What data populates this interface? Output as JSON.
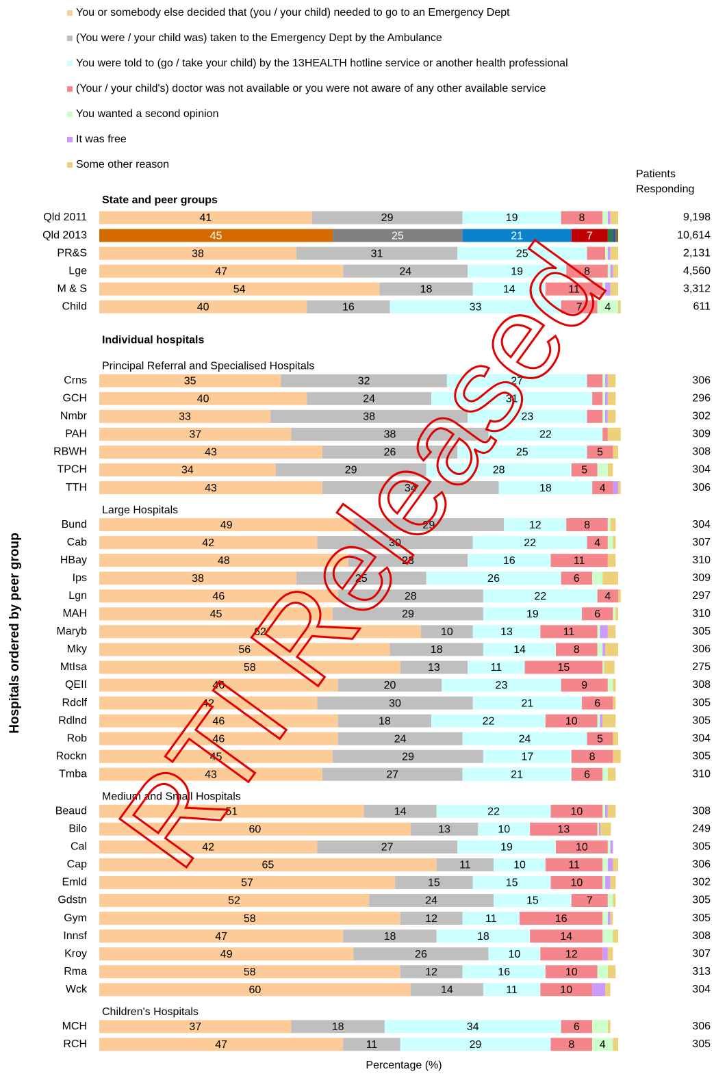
{
  "chart_data": {
    "type": "stacked_bar",
    "xlabel": "Percentage (%)",
    "ylabel": "Hospitals ordered by peer group",
    "right_header": [
      "Patients",
      "Responding"
    ],
    "watermark": "RTI Released",
    "xlim": [
      0,
      100
    ],
    "label_min": 4,
    "series": [
      {
        "name": "You or somebody else decided that (you / your child) needed to go to an Emergency Dept",
        "color": "#fdcb97"
      },
      {
        "name": "(You were / your child was) taken to the Emergency Dept by the Ambulance",
        "color": "#bfbfbf"
      },
      {
        "name": "You were told to (go / take your child) by the 13HEALTH hotline service or another health professional",
        "color": "#ccffff"
      },
      {
        "name": "(Your / your child's) doctor was not available or you were not aware of any other available service",
        "color": "#f4868b"
      },
      {
        "name": "You wanted a second opinion",
        "color": "#ccffcc"
      },
      {
        "name": "It was free",
        "color": "#cc99ff"
      },
      {
        "name": "Some other reason",
        "color": "#ecd07a"
      }
    ],
    "sections": [
      {
        "title": "State and peer groups",
        "groups": [
          {
            "rows": [
              {
                "label": "Qld 2011",
                "values": [
                  41,
                  29,
                  19,
                  8,
                  1,
                  0.5,
                  1.5
                ],
                "patients": "9,198"
              },
              {
                "label": "Qld 2013",
                "values": [
                  45,
                  25,
                  21,
                  7,
                  1,
                  0.5,
                  0.5
                ],
                "patients": "10,614",
                "colors": [
                  "#d46a00",
                  "#808080",
                  "#0a82cc",
                  "#c00000",
                  "#2a7a50",
                  "#3050a0",
                  "#8a6a20"
                ],
                "label_color": "#ffffff"
              },
              {
                "label": "PR&S",
                "values": [
                  38,
                  31,
                  25,
                  3.5,
                  0.5,
                  0.5,
                  1.5
                ],
                "patients": "2,131"
              },
              {
                "label": "Lge",
                "values": [
                  47,
                  24,
                  19,
                  8,
                  0.5,
                  0.5,
                  1
                ],
                "patients": "4,560"
              },
              {
                "label": "M & S",
                "values": [
                  54,
                  18,
                  14,
                  11,
                  0.5,
                  1,
                  1.5
                ],
                "patients": "3,312"
              },
              {
                "label": "Child",
                "values": [
                  40,
                  16,
                  33,
                  7,
                  4,
                  0,
                  0.5
                ],
                "patients": "611"
              }
            ]
          }
        ]
      },
      {
        "title": "Individual hospitals",
        "groups": [
          {
            "title": "Principal Referral and Specialised Hospitals",
            "rows": [
              {
                "label": "Crns",
                "values": [
                  35,
                  32,
                  27,
                  3,
                  0.5,
                  0.5,
                  1.5
                ],
                "patients": "306"
              },
              {
                "label": "GCH",
                "values": [
                  40,
                  24,
                  31,
                  2,
                  0.5,
                  0.5,
                  1.5
                ],
                "patients": "296"
              },
              {
                "label": "Nmbr",
                "values": [
                  33,
                  38,
                  23,
                  3,
                  0.5,
                  0.5,
                  1.5
                ],
                "patients": "302"
              },
              {
                "label": "PAH",
                "values": [
                  37,
                  38,
                  22,
                  1,
                  0,
                  0,
                  2.5
                ],
                "patients": "309"
              },
              {
                "label": "RBWH",
                "values": [
                  43,
                  26,
                  25,
                  5,
                  0,
                  0,
                  1
                ],
                "patients": "308"
              },
              {
                "label": "TPCH",
                "values": [
                  34,
                  29,
                  28,
                  5,
                  2,
                  0,
                  1
                ],
                "patients": "304"
              },
              {
                "label": "TTH",
                "values": [
                  43,
                  34,
                  18,
                  4,
                  0,
                  1,
                  0.5
                ],
                "patients": "306"
              }
            ]
          },
          {
            "title": "Large Hospitals",
            "rows": [
              {
                "label": "Bund",
                "values": [
                  49,
                  29,
                  12,
                  8,
                  0.5,
                  0,
                  1
                ],
                "patients": "304"
              },
              {
                "label": "Cab",
                "values": [
                  42,
                  30,
                  22,
                  4,
                  1,
                  0,
                  0.5
                ],
                "patients": "307"
              },
              {
                "label": "HBay",
                "values": [
                  48,
                  23,
                  16,
                  11,
                  0,
                  0,
                  1.5
                ],
                "patients": "310"
              },
              {
                "label": "Ips",
                "values": [
                  38,
                  25,
                  26,
                  6,
                  2,
                  0,
                  3
                ],
                "patients": "309"
              },
              {
                "label": "Lgn",
                "values": [
                  46,
                  28,
                  22,
                  4,
                  0,
                  0,
                  0.5
                ],
                "patients": "297"
              },
              {
                "label": "MAH",
                "values": [
                  45,
                  29,
                  19,
                  6,
                  0.5,
                  0,
                  0.5
                ],
                "patients": "310"
              },
              {
                "label": "Maryb",
                "values": [
                  62,
                  10,
                  13,
                  11,
                  0.5,
                  1.5,
                  1.5
                ],
                "patients": "305"
              },
              {
                "label": "Mky",
                "values": [
                  56,
                  18,
                  14,
                  8,
                  1,
                  0.5,
                  2.5
                ],
                "patients": "306"
              },
              {
                "label": "MtIsa",
                "values": [
                  58,
                  13,
                  11,
                  15,
                  0.3,
                  0,
                  2
                ],
                "patients": "275"
              },
              {
                "label": "QEII",
                "values": [
                  46,
                  20,
                  23,
                  9,
                  1,
                  0,
                  0.5
                ],
                "patients": "308"
              },
              {
                "label": "Rdclf",
                "values": [
                  42,
                  30,
                  21,
                  6,
                  0,
                  0,
                  0.5
                ],
                "patients": "305"
              },
              {
                "label": "Rdlnd",
                "values": [
                  46,
                  18,
                  22,
                  10,
                  0.5,
                  0.5,
                  2.5
                ],
                "patients": "305"
              },
              {
                "label": "Rob",
                "values": [
                  46,
                  24,
                  24,
                  5,
                  0,
                  0,
                  1
                ],
                "patients": "304"
              },
              {
                "label": "Rockn",
                "values": [
                  45,
                  29,
                  17,
                  8,
                  0,
                  0,
                  1.5
                ],
                "patients": "305"
              },
              {
                "label": "Tmba",
                "values": [
                  43,
                  27,
                  21,
                  6,
                  1,
                  0,
                  1.5
                ],
                "patients": "310"
              }
            ]
          },
          {
            "title": "Medium and Small Hospitals",
            "rows": [
              {
                "label": "Beaud",
                "values": [
                  51,
                  14,
                  22,
                  10,
                  0.5,
                  0.5,
                  1.5
                ],
                "patients": "308"
              },
              {
                "label": "Bilo",
                "values": [
                  60,
                  13,
                  10,
                  13,
                  0.3,
                  0.3,
                  2
                ],
                "patients": "249"
              },
              {
                "label": "Cal",
                "values": [
                  42,
                  27,
                  19,
                  10,
                  0.5,
                  0.5,
                  0
                ],
                "patients": "305"
              },
              {
                "label": "Cap",
                "values": [
                  65,
                  11,
                  10,
                  11,
                  1,
                  1,
                  1
                ],
                "patients": "306"
              },
              {
                "label": "Emld",
                "values": [
                  57,
                  15,
                  15,
                  10,
                  0.5,
                  1,
                  1
                ],
                "patients": "302"
              },
              {
                "label": "Gdstn",
                "values": [
                  52,
                  24,
                  15,
                  7,
                  1,
                  0,
                  0.5
                ],
                "patients": "305"
              },
              {
                "label": "Gym",
                "values": [
                  58,
                  12,
                  11,
                  16,
                  1,
                  0.5,
                  0.5
                ],
                "patients": "305"
              },
              {
                "label": "Innsf",
                "values": [
                  47,
                  18,
                  18,
                  14,
                  2,
                  0,
                  1
                ],
                "patients": "308"
              },
              {
                "label": "Kroy",
                "values": [
                  49,
                  26,
                  10,
                  12,
                  0,
                  1,
                  1
                ],
                "patients": "307"
              },
              {
                "label": "Rma",
                "values": [
                  58,
                  12,
                  16,
                  10,
                  2,
                  0,
                  1.5
                ],
                "patients": "313"
              },
              {
                "label": "Wck",
                "values": [
                  60,
                  14,
                  11,
                  10,
                  0,
                  2.5,
                  1
                ],
                "patients": "304"
              }
            ]
          },
          {
            "title": "Children's Hospitals",
            "rows": [
              {
                "label": "MCH",
                "values": [
                  37,
                  18,
                  34,
                  6,
                  3,
                  0,
                  0.5
                ],
                "patients": "306"
              },
              {
                "label": "RCH",
                "values": [
                  47,
                  11,
                  29,
                  8,
                  4,
                  0,
                  1
                ],
                "patients": "305"
              }
            ]
          }
        ]
      }
    ]
  }
}
